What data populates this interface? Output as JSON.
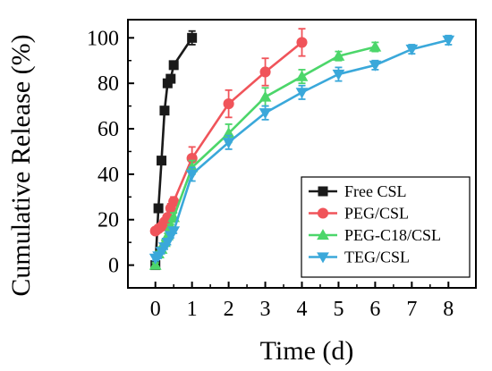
{
  "chart_data": {
    "type": "line",
    "xlabel": "Time (d)",
    "ylabel": "Cumulative Release (%)",
    "xlim": [
      -0.75,
      8.75
    ],
    "ylim": [
      -10,
      108
    ],
    "xticks": [
      0,
      1,
      2,
      3,
      4,
      5,
      6,
      7,
      8
    ],
    "yticks": [
      0,
      20,
      40,
      60,
      80,
      100
    ],
    "legend_position": "bottom-right",
    "grid": false,
    "series": [
      {
        "name": "Free CSL",
        "color": "#1a1a1a",
        "marker": "square",
        "x": [
          0,
          0.083,
          0.167,
          0.25,
          0.333,
          0.417,
          0.5,
          1
        ],
        "y": [
          0,
          25,
          46,
          68,
          80,
          82,
          88,
          100
        ],
        "err": [
          0,
          0,
          0,
          0,
          0,
          0,
          0,
          3
        ]
      },
      {
        "name": "PEG/CSL",
        "color": "#f0545a",
        "marker": "circle",
        "x": [
          0,
          0.083,
          0.167,
          0.25,
          0.333,
          0.417,
          0.5,
          1,
          2,
          3,
          4
        ],
        "y": [
          15,
          16,
          17,
          19,
          21,
          25,
          28,
          47,
          71,
          85,
          98
        ],
        "err": [
          1,
          1,
          1,
          1,
          1,
          2,
          2,
          5,
          6,
          6,
          6
        ]
      },
      {
        "name": "PEG-C18/CSL",
        "color": "#4cd66a",
        "marker": "triangle-up",
        "x": [
          0,
          0.083,
          0.167,
          0.25,
          0.333,
          0.417,
          0.5,
          1,
          2,
          3,
          4,
          5,
          6
        ],
        "y": [
          0,
          5,
          7,
          10,
          13,
          17,
          21,
          43,
          58,
          74,
          83,
          92,
          96
        ],
        "err": [
          1,
          1,
          1,
          1,
          1,
          1,
          2,
          3,
          4,
          4,
          3,
          2,
          2
        ]
      },
      {
        "name": "TEG/CSL",
        "color": "#3aa8da",
        "marker": "triangle-down",
        "x": [
          0,
          0.083,
          0.167,
          0.25,
          0.333,
          0.417,
          0.5,
          1,
          2,
          3,
          4,
          5,
          6,
          7,
          8
        ],
        "y": [
          3,
          4,
          6,
          8,
          10,
          13,
          15,
          40,
          54,
          67,
          76,
          84,
          88,
          95,
          99
        ],
        "err": [
          1,
          1,
          1,
          1,
          1,
          1,
          1,
          3,
          3,
          3,
          3,
          3,
          2,
          2,
          2
        ]
      }
    ]
  }
}
